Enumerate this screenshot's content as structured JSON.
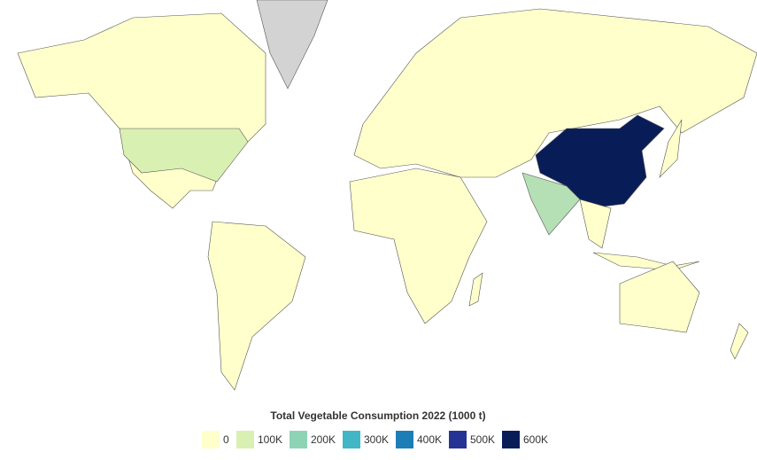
{
  "legend": {
    "title": "Total Vegetable Consumption 2022 (1000 t)",
    "colors": [
      "#ffffcc",
      "#d9f0b3",
      "#8fd3b6",
      "#41b6c4",
      "#1d7eb7",
      "#253494",
      "#081d58"
    ],
    "ticks": [
      0,
      {
        "value": 100000,
        "label": "100K"
      },
      {
        "value": 200000,
        "label": "200K"
      },
      {
        "value": 300000,
        "label": "300K"
      },
      {
        "value": 400000,
        "label": "400K"
      },
      {
        "value": 500000,
        "label": "500K"
      },
      {
        "value": 600000,
        "label": "600K"
      }
    ]
  }
}
